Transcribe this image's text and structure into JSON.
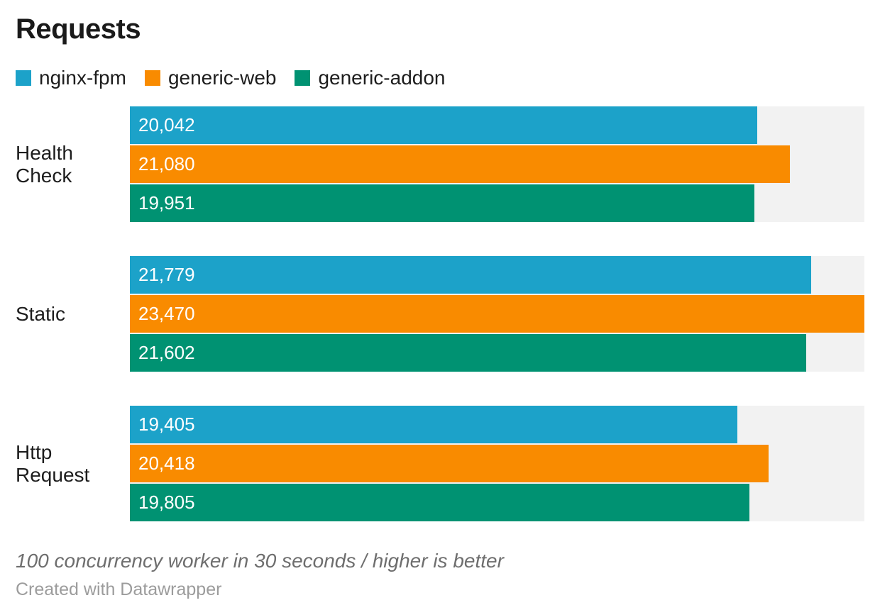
{
  "title": "Requests",
  "legend": [
    {
      "label": "nginx-fpm",
      "color": "#1CA2C9"
    },
    {
      "label": "generic-web",
      "color": "#F98B00"
    },
    {
      "label": "generic-addon",
      "color": "#009272"
    }
  ],
  "chart_data": {
    "type": "bar",
    "orientation": "horizontal",
    "title": "Requests",
    "categories": [
      "Health Check",
      "Static",
      "Http Request"
    ],
    "series": [
      {
        "name": "nginx-fpm",
        "color": "#1CA2C9",
        "values": [
          20042,
          21779,
          19405
        ]
      },
      {
        "name": "generic-web",
        "color": "#F98B00",
        "values": [
          21080,
          23470,
          20418
        ]
      },
      {
        "name": "generic-addon",
        "color": "#009272",
        "values": [
          19951,
          21602,
          19805
        ]
      }
    ],
    "value_labels": {
      "Health Check": [
        "20,042",
        "21,080",
        "19,951"
      ],
      "Static": [
        "21,779",
        "23,470",
        "21,602"
      ],
      "Http Request": [
        "19,405",
        "20,418",
        "19,805"
      ]
    },
    "xmax": 23470,
    "xlabel": "",
    "ylabel": "",
    "grid": false,
    "legend_position": "top",
    "track_color": "#F2F2F2",
    "value_label_color": "#FFFFFF"
  },
  "footer": {
    "note": "100 concurrency worker in 30 seconds / higher is better",
    "byline": "Created with Datawrapper"
  }
}
